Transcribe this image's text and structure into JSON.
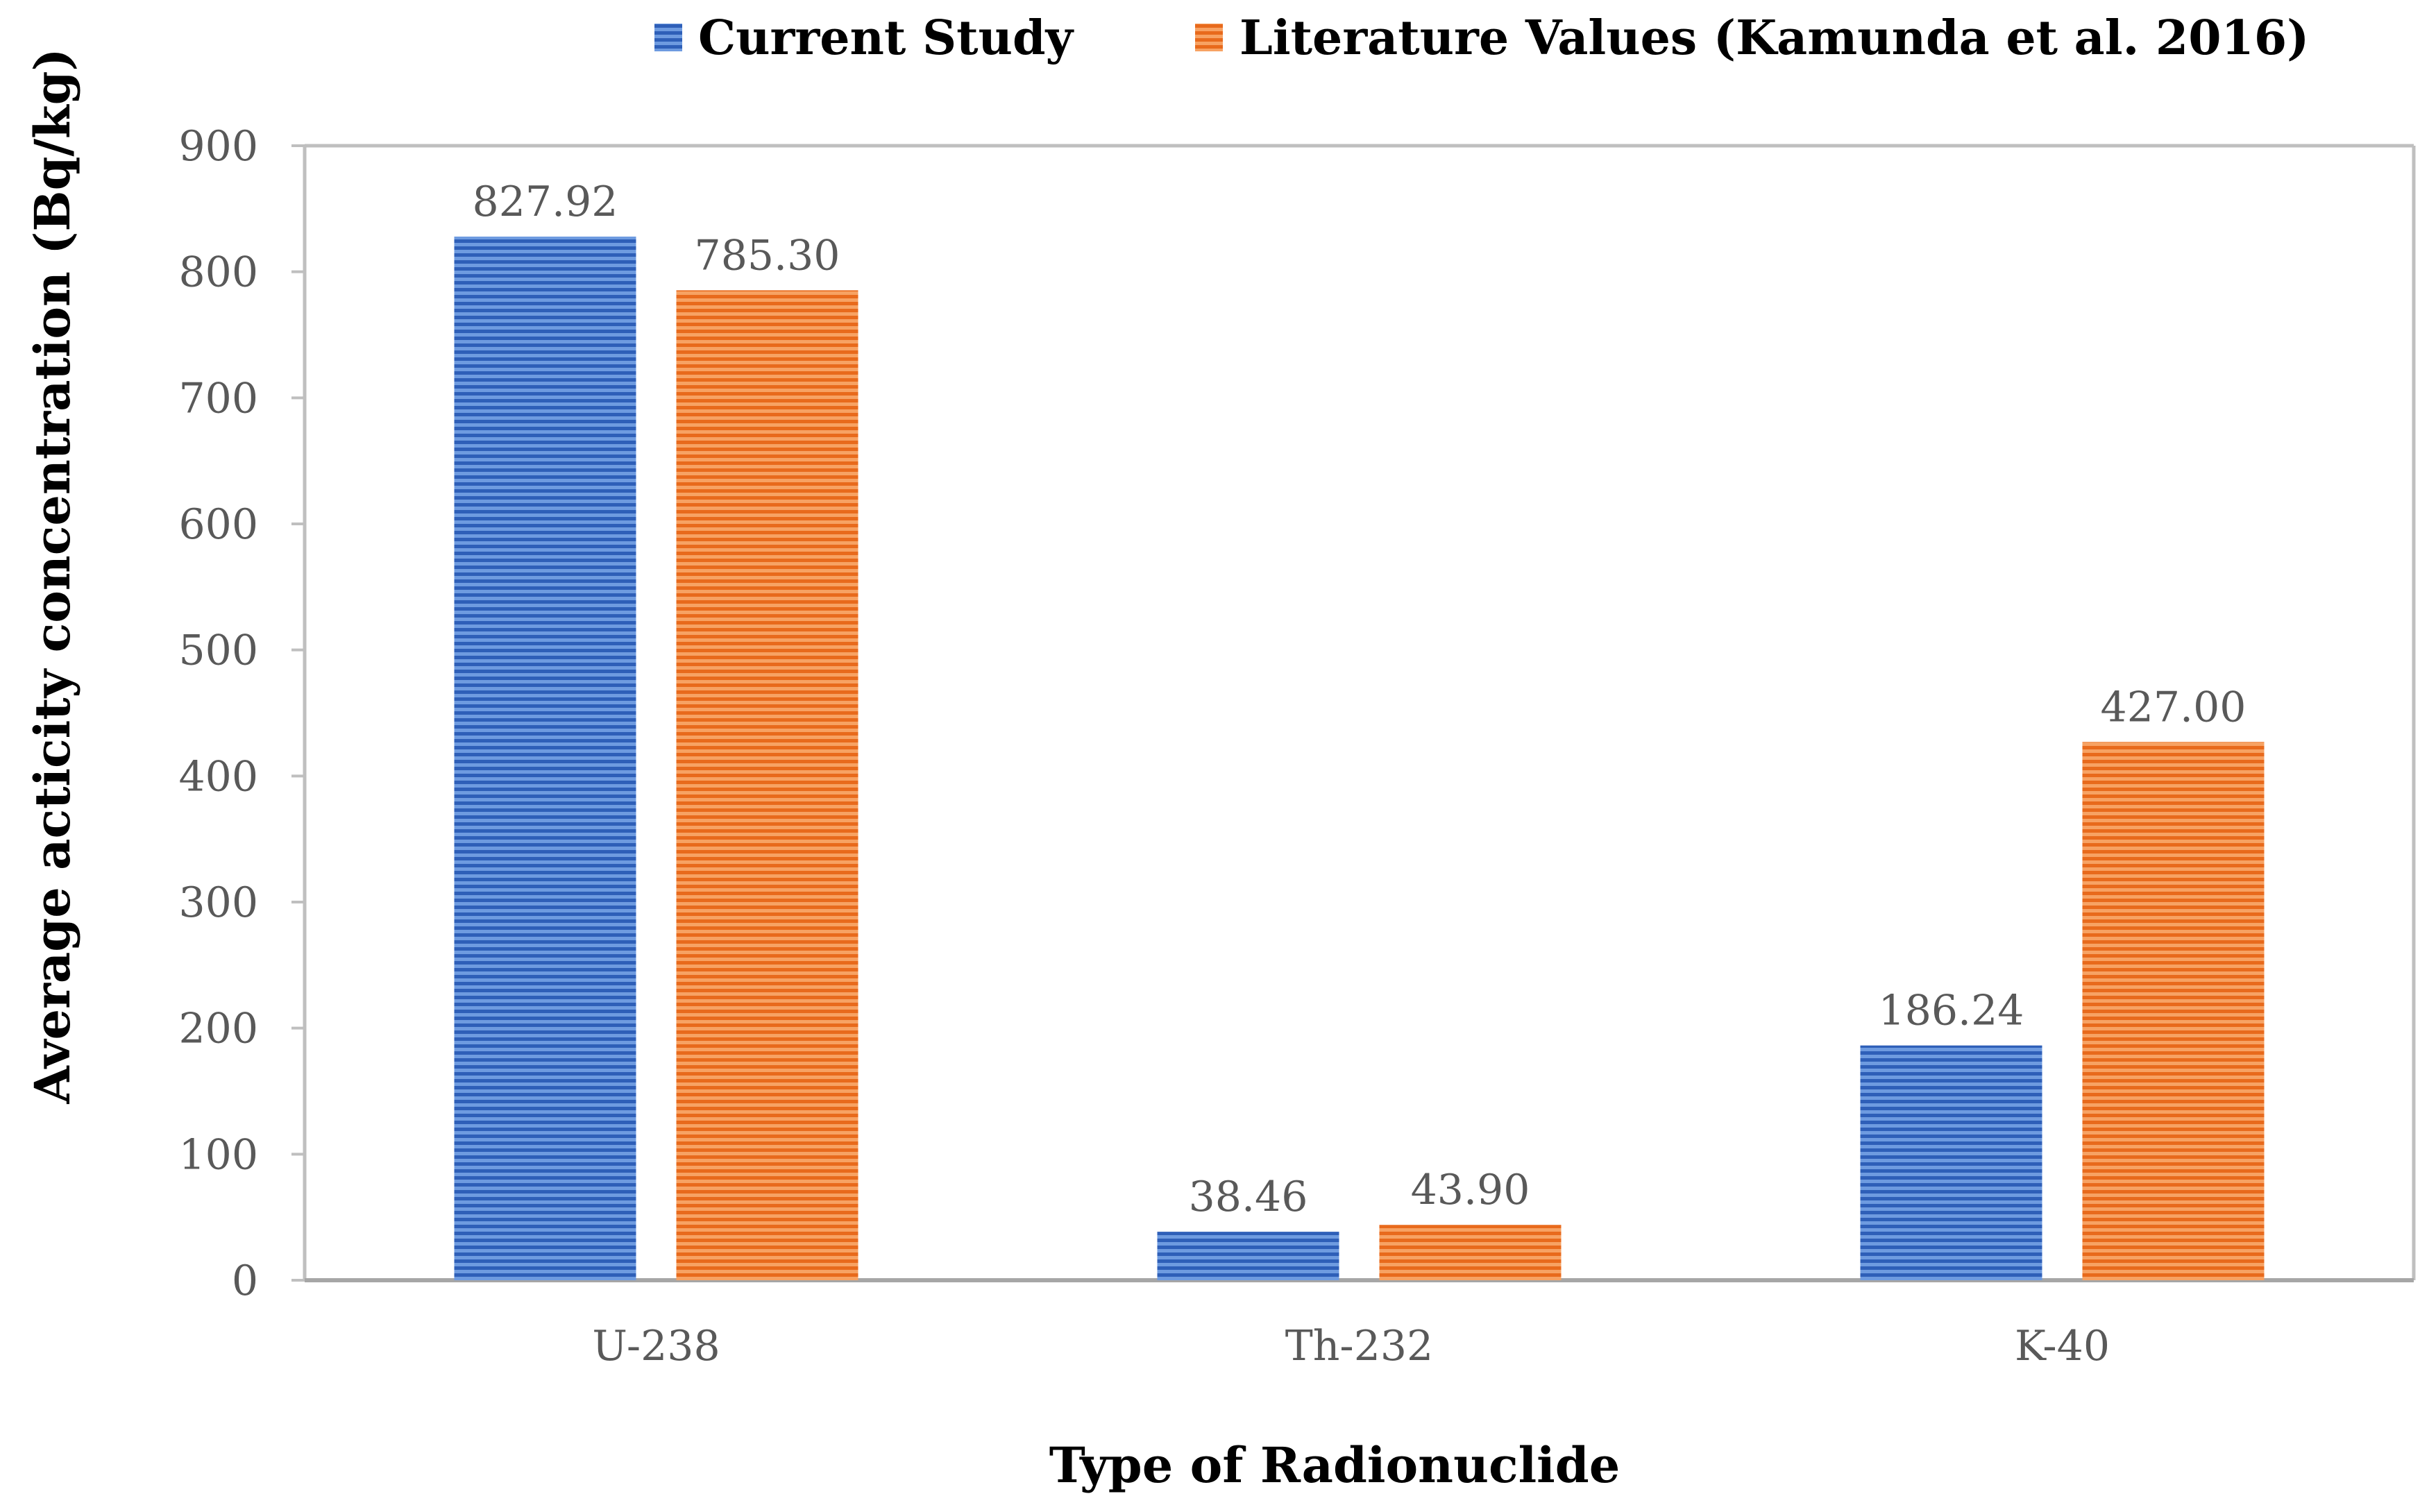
{
  "chart_data": {
    "type": "bar",
    "categories": [
      "U-238",
      "Th-232",
      "K-40"
    ],
    "series": [
      {
        "name": "Current Study",
        "values": [
          827.92,
          38.46,
          186.24
        ],
        "labels": [
          "827.92",
          "38.46",
          "186.24"
        ],
        "color": "#4472C4"
      },
      {
        "name": "Literature Values (Kamunda et al. 2016)",
        "values": [
          785.3,
          43.9,
          427.0
        ],
        "labels": [
          "785.30",
          "43.90",
          "427.00"
        ],
        "color": "#ED7D31"
      }
    ],
    "xlabel": "Type of Radionuclide",
    "ylabel": "Average acticity concentration (Bq/kg)",
    "ylim": [
      0,
      900
    ],
    "yticks": [
      "0",
      "100",
      "200",
      "300",
      "400",
      "500",
      "600",
      "700",
      "800",
      "900"
    ],
    "legend_position": "top",
    "grid": false,
    "bar_pattern": "horizontal-stripes"
  }
}
